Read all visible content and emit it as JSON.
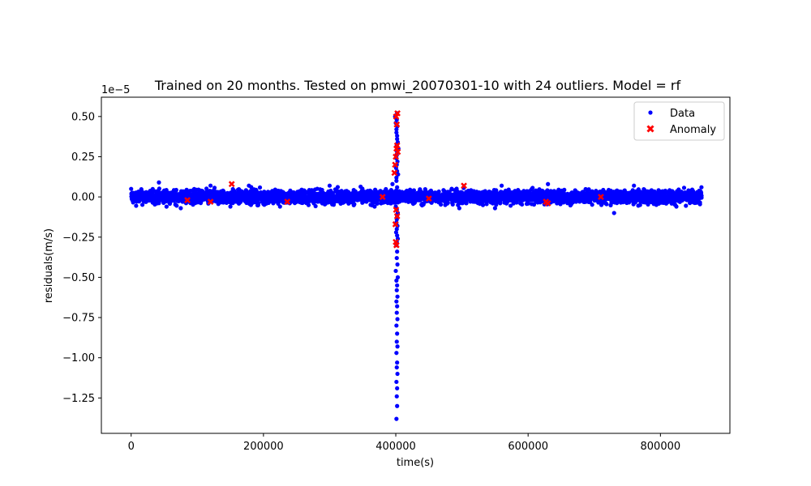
{
  "chart_data": {
    "type": "scatter",
    "title": "Trained on 20 months. Tested on pmwi_20070301-10 with 24 outliers. Model = rf",
    "xlabel": "time(s)",
    "ylabel": "residuals(m/s)",
    "y_offset_label": "1e−5",
    "xlim": [
      -45000,
      905000
    ],
    "ylim": [
      -1.47,
      0.62
    ],
    "x_ticks": [
      0,
      200000,
      400000,
      600000,
      800000
    ],
    "x_tick_labels": [
      "0",
      "200000",
      "400000",
      "600000",
      "800000"
    ],
    "y_ticks": [
      0.5,
      0.25,
      0.0,
      -0.25,
      -0.5,
      -0.75,
      -1.0,
      -1.25
    ],
    "y_tick_labels": [
      "0.50",
      "0.25",
      "0.00",
      "−0.25",
      "−0.50",
      "−0.75",
      "−1.00",
      "−1.25"
    ],
    "grid": false,
    "legend_position": "top-right",
    "colors": {
      "data": "#0000ff",
      "anomaly": "#ff0000"
    },
    "series": [
      {
        "name": "Data",
        "marker": "dot",
        "band": {
          "x_start": 0,
          "x_end": 862000,
          "x_step": 700,
          "y_spread": 0.045
        },
        "x": [
          0,
          42000,
          75000,
          120000,
          150000,
          178000,
          225000,
          300000,
          368000,
          395000,
          399000,
          400000,
          401000,
          402000,
          403000,
          404000,
          401500,
          402500,
          400500,
          403500,
          401000,
          402000,
          400000,
          403000,
          401500,
          402500,
          400500,
          403000,
          401000,
          402000,
          401500,
          402500,
          400000,
          403000,
          401000,
          402000,
          401500,
          402500,
          401000,
          402000,
          401500,
          402500,
          401000,
          402000,
          401500,
          402500,
          401000,
          402000,
          401500,
          402500,
          401000,
          402000,
          401500,
          402000,
          401000,
          402000,
          401500,
          402500,
          401000,
          402000,
          401500,
          402000,
          401000,
          401500,
          402000,
          401000,
          401500,
          402000,
          401000,
          401500,
          402000,
          401500,
          496000,
          560000,
          550000,
          630000,
          730000,
          760000,
          862000
        ],
        "y": [
          0.05,
          0.09,
          -0.07,
          0.07,
          -0.06,
          0.07,
          -0.06,
          0.07,
          -0.06,
          0.08,
          0.5,
          0.46,
          0.42,
          0.38,
          0.34,
          0.3,
          0.26,
          0.22,
          0.18,
          0.14,
          0.1,
          0.06,
          -0.06,
          -0.1,
          -0.14,
          -0.18,
          -0.22,
          -0.26,
          -0.3,
          -0.34,
          -0.38,
          -0.42,
          -0.46,
          -0.5,
          -0.52,
          -0.55,
          -0.58,
          -0.62,
          -0.65,
          -0.68,
          -0.72,
          -0.76,
          -0.8,
          -0.85,
          -0.9,
          -0.93,
          -0.97,
          -1.03,
          -1.06,
          -1.1,
          -1.15,
          -1.19,
          -1.24,
          -1.3,
          -1.38,
          0.52,
          0.48,
          0.44,
          0.4,
          0.36,
          0.32,
          0.28,
          0.24,
          0.2,
          0.16,
          0.12,
          -0.08,
          -0.12,
          -0.16,
          -0.2,
          -0.24,
          -0.28,
          -0.07,
          0.07,
          -0.07,
          0.08,
          -0.1,
          0.07,
          0.06
        ]
      },
      {
        "name": "Anomaly",
        "marker": "x",
        "x": [
          85000,
          120000,
          152000,
          236000,
          380000,
          398000,
          399000,
          400000,
          401000,
          402000,
          403000,
          400500,
          401500,
          402500,
          399500,
          400000,
          401000,
          402000,
          400500,
          450000,
          503000,
          627000,
          630000,
          710000
        ],
        "y": [
          -0.02,
          -0.03,
          0.08,
          -0.03,
          0.0,
          0.15,
          0.2,
          0.25,
          0.3,
          0.32,
          0.28,
          0.5,
          0.45,
          0.52,
          -0.17,
          -0.28,
          -0.3,
          -0.12,
          -0.08,
          -0.01,
          0.07,
          -0.03,
          -0.04,
          0.0
        ]
      }
    ]
  }
}
